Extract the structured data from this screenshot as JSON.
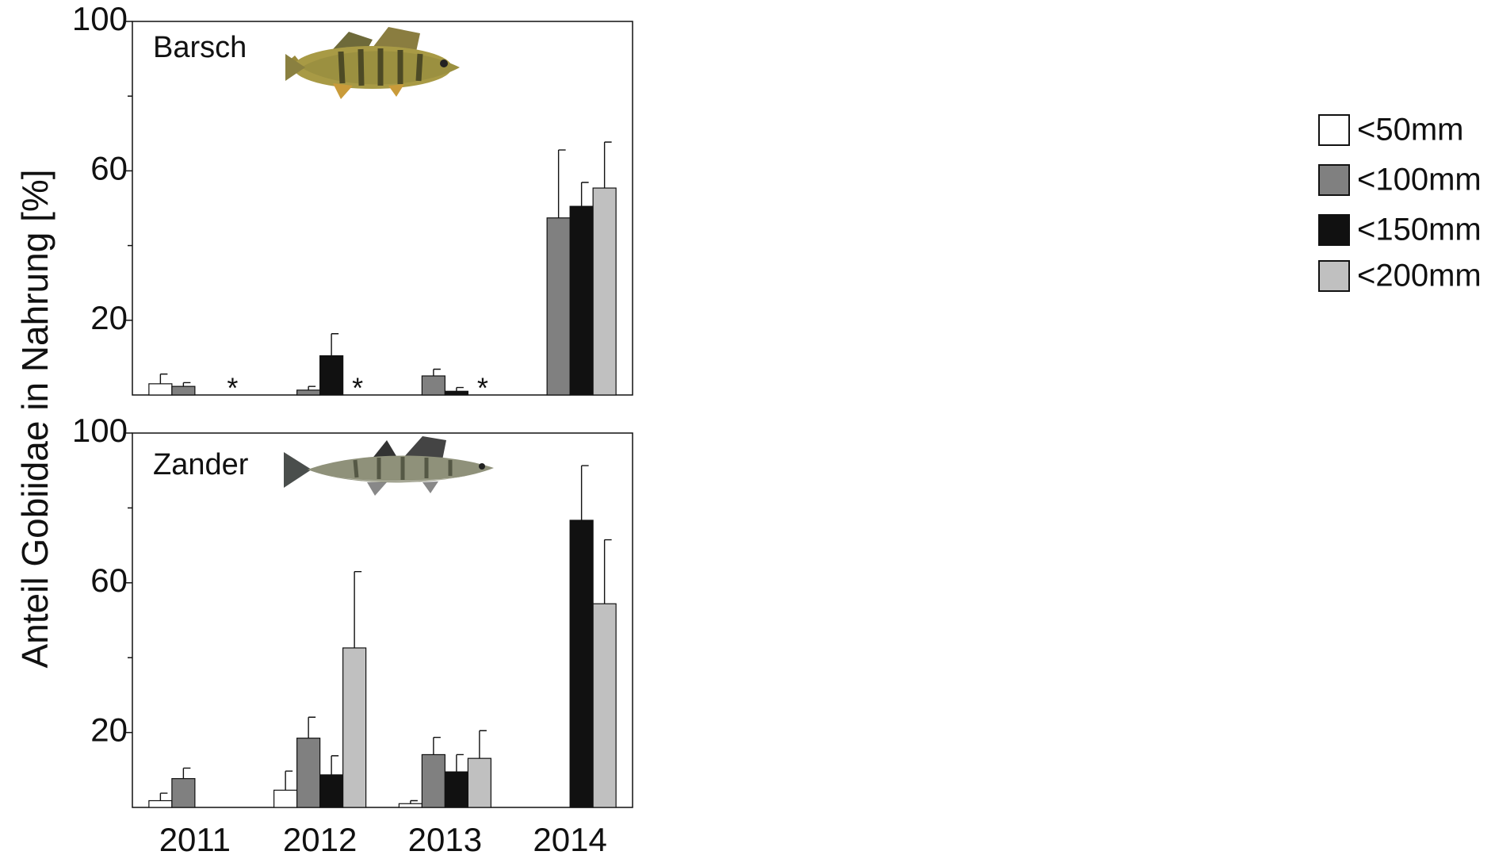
{
  "chart_data": [
    {
      "type": "bar",
      "title": "Barsch",
      "ylabel": "Anteil Gobiidae in Nahrung [%]",
      "categories": [
        null,
        null,
        null,
        null
      ],
      "ylim": [
        0,
        100
      ],
      "yticks": [
        20,
        60,
        100
      ],
      "minor_yticks": [
        40,
        80
      ],
      "annotations": [
        "*",
        "*",
        "*"
      ],
      "series": [
        {
          "name": "<50mm",
          "color": "#ffffff",
          "values": [
            3,
            null,
            null,
            null
          ],
          "errors": [
            2.6,
            null,
            null,
            null
          ]
        },
        {
          "name": "<100mm",
          "color": "#808080",
          "values": [
            2.3,
            1.3,
            5.1,
            47.4
          ],
          "errors": [
            1.0,
            1.0,
            1.8,
            18.2
          ]
        },
        {
          "name": "<150mm",
          "color": "#111111",
          "values": [
            null,
            10.5,
            1,
            50.5
          ],
          "errors": [
            null,
            5.9,
            1.0,
            6.4
          ]
        },
        {
          "name": "<200mm",
          "color": "#c0c0c0",
          "values": [
            null,
            null,
            null,
            55.4
          ],
          "errors": [
            null,
            null,
            null,
            12.3
          ]
        }
      ]
    },
    {
      "type": "bar",
      "title": "Zander",
      "categories": [
        "2011",
        "2012",
        "2013",
        "2014"
      ],
      "ylim": [
        0,
        100
      ],
      "yticks": [
        20,
        60,
        100
      ],
      "minor_yticks": [
        40,
        80
      ],
      "series": [
        {
          "color": "#ffffff",
          "values": [
            1.8,
            4.6,
            1,
            null
          ],
          "errors": [
            2.0,
            5.1,
            0.8,
            null
          ]
        },
        {
          "color": "#808080",
          "values": [
            7.7,
            18.5,
            14.1,
            null
          ],
          "errors": [
            2.8,
            5.6,
            4.6,
            null
          ]
        },
        {
          "color": "#111111",
          "values": [
            null,
            8.7,
            9.5,
            76.7
          ],
          "errors": [
            null,
            5.1,
            4.6,
            14.6
          ]
        },
        {
          "color": "#c0c0c0",
          "values": [
            null,
            42.6,
            13.1,
            54.4
          ],
          "errors": [
            null,
            20.4,
            7.4,
            17.1
          ]
        }
      ]
    }
  ]
}
